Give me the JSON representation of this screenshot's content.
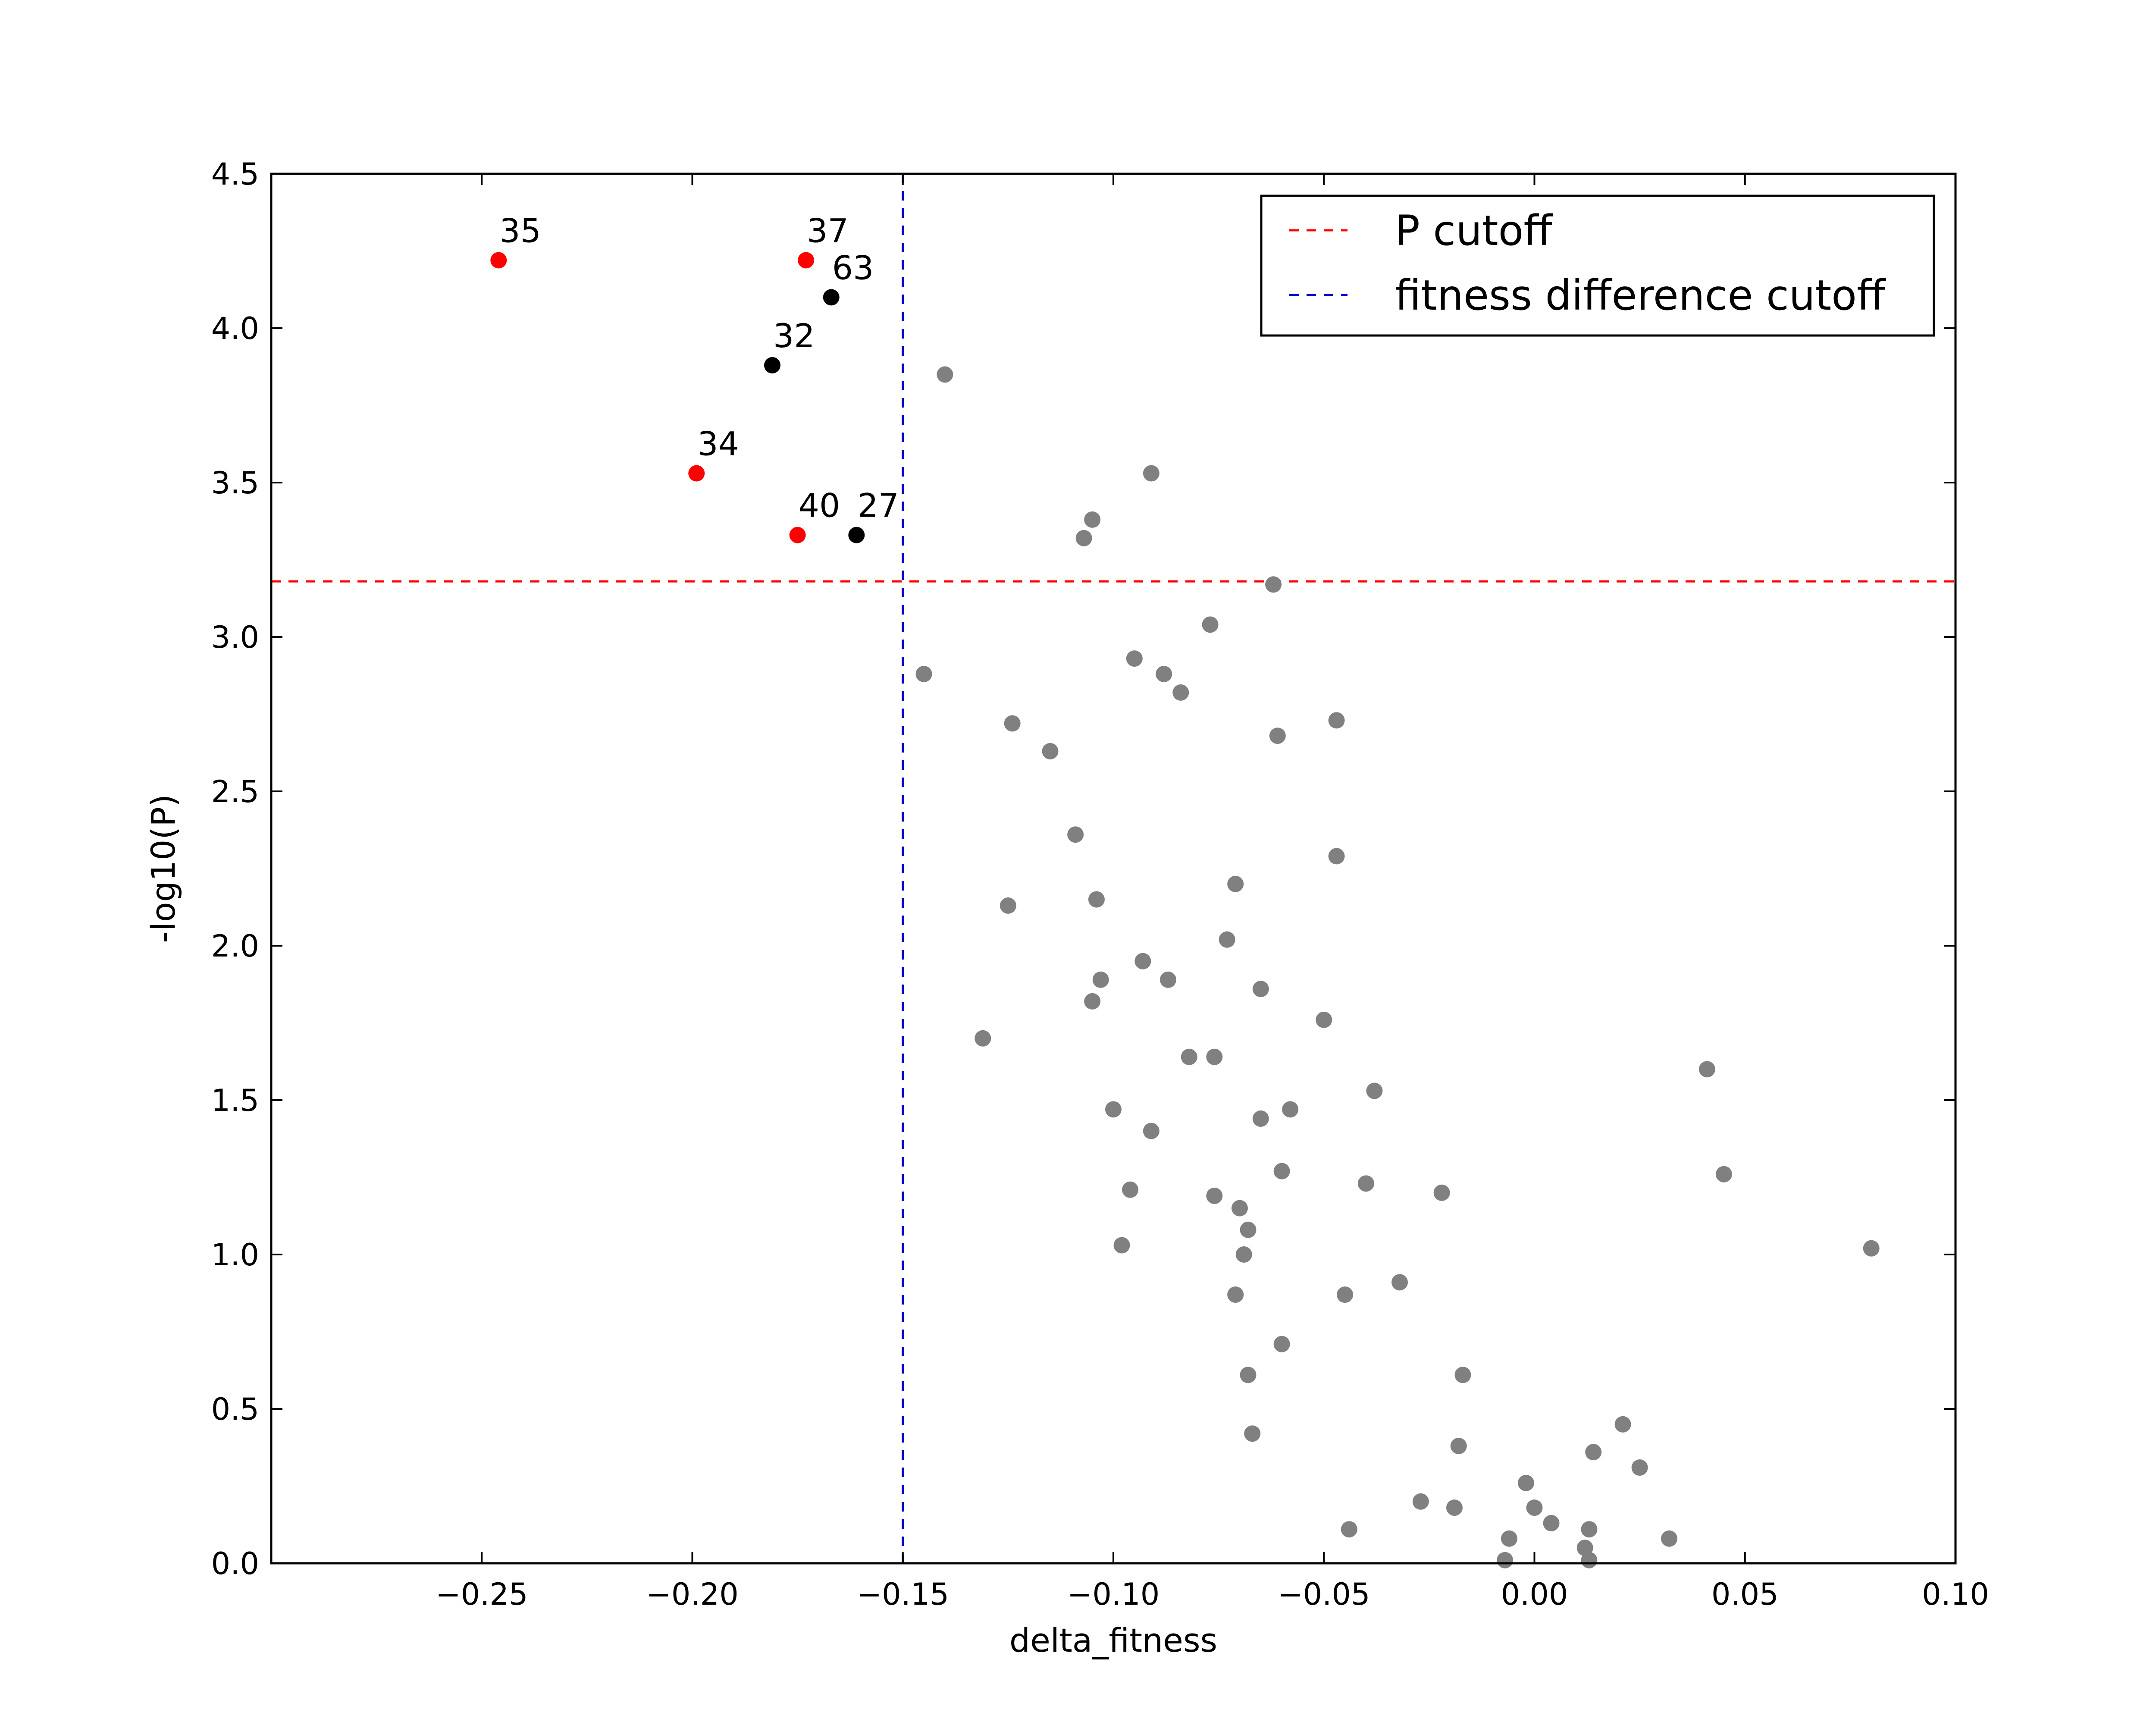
{
  "chart_data": {
    "type": "scatter",
    "title": "",
    "xlabel": "delta_fitness",
    "ylabel": "-log10(P)",
    "xlim": [
      -0.3,
      0.1
    ],
    "ylim": [
      0.0,
      4.5
    ],
    "x_ticks": [
      -0.25,
      -0.2,
      -0.15,
      -0.1,
      -0.05,
      0.0,
      0.05,
      0.1
    ],
    "x_tick_labels": [
      "−0.25",
      "−0.20",
      "−0.15",
      "−0.10",
      "−0.05",
      "0.00",
      "0.05",
      "0.10"
    ],
    "y_ticks": [
      0.0,
      0.5,
      1.0,
      1.5,
      2.0,
      2.5,
      3.0,
      3.5,
      4.0,
      4.5
    ],
    "y_tick_labels": [
      "0.0",
      "0.5",
      "1.0",
      "1.5",
      "2.0",
      "2.5",
      "3.0",
      "3.5",
      "4.0",
      "4.5"
    ],
    "grid": false,
    "legend_position": "top-right",
    "colors": {
      "significant": "#ff0000",
      "labeled": "#000000",
      "other": "#808080",
      "p_cutoff": "#ff0000",
      "fitness_cutoff": "#0000cc"
    },
    "reference_lines": [
      {
        "name": "P cutoff",
        "orientation": "horizontal",
        "value": 3.18,
        "color": "#ff0000",
        "style": "dashed"
      },
      {
        "name": "fitness difference cutoff",
        "orientation": "vertical",
        "value": -0.15,
        "color": "#0000cc",
        "style": "dashed"
      }
    ],
    "labeled_points": [
      {
        "label": "35",
        "x": -0.246,
        "y": 4.22,
        "color": "#ff0000"
      },
      {
        "label": "37",
        "x": -0.173,
        "y": 4.22,
        "color": "#ff0000"
      },
      {
        "label": "63",
        "x": -0.167,
        "y": 4.1,
        "color": "#000000"
      },
      {
        "label": "32",
        "x": -0.181,
        "y": 3.88,
        "color": "#000000"
      },
      {
        "label": "34",
        "x": -0.199,
        "y": 3.53,
        "color": "#ff0000"
      },
      {
        "label": "40",
        "x": -0.175,
        "y": 3.33,
        "color": "#ff0000"
      },
      {
        "label": "27",
        "x": -0.161,
        "y": 3.33,
        "color": "#000000"
      }
    ],
    "other_points": [
      [
        -0.14,
        3.85
      ],
      [
        -0.091,
        3.53
      ],
      [
        -0.105,
        3.38
      ],
      [
        -0.107,
        3.32
      ],
      [
        -0.062,
        3.17
      ],
      [
        -0.077,
        3.04
      ],
      [
        -0.145,
        2.88
      ],
      [
        -0.095,
        2.93
      ],
      [
        -0.088,
        2.88
      ],
      [
        -0.084,
        2.82
      ],
      [
        -0.124,
        2.72
      ],
      [
        -0.047,
        2.73
      ],
      [
        -0.061,
        2.68
      ],
      [
        -0.115,
        2.63
      ],
      [
        -0.109,
        2.36
      ],
      [
        -0.047,
        2.29
      ],
      [
        -0.071,
        2.2
      ],
      [
        -0.104,
        2.15
      ],
      [
        -0.125,
        2.13
      ],
      [
        -0.073,
        2.02
      ],
      [
        -0.093,
        1.95
      ],
      [
        -0.103,
        1.89
      ],
      [
        -0.087,
        1.89
      ],
      [
        -0.065,
        1.86
      ],
      [
        -0.105,
        1.82
      ],
      [
        -0.05,
        1.76
      ],
      [
        -0.131,
        1.7
      ],
      [
        -0.082,
        1.64
      ],
      [
        -0.076,
        1.64
      ],
      [
        0.041,
        1.6
      ],
      [
        -0.038,
        1.53
      ],
      [
        -0.1,
        1.47
      ],
      [
        -0.058,
        1.47
      ],
      [
        -0.065,
        1.44
      ],
      [
        -0.091,
        1.4
      ],
      [
        -0.06,
        1.27
      ],
      [
        0.045,
        1.26
      ],
      [
        -0.04,
        1.23
      ],
      [
        -0.096,
        1.21
      ],
      [
        -0.022,
        1.2
      ],
      [
        -0.076,
        1.19
      ],
      [
        -0.07,
        1.15
      ],
      [
        -0.068,
        1.08
      ],
      [
        -0.098,
        1.03
      ],
      [
        0.08,
        1.02
      ],
      [
        -0.069,
        1.0
      ],
      [
        -0.032,
        0.91
      ],
      [
        -0.071,
        0.87
      ],
      [
        -0.045,
        0.87
      ],
      [
        -0.06,
        0.71
      ],
      [
        -0.068,
        0.61
      ],
      [
        -0.017,
        0.61
      ],
      [
        0.021,
        0.45
      ],
      [
        -0.067,
        0.42
      ],
      [
        -0.018,
        0.38
      ],
      [
        0.014,
        0.36
      ],
      [
        0.025,
        0.31
      ],
      [
        -0.002,
        0.26
      ],
      [
        -0.027,
        0.2
      ],
      [
        0.0,
        0.18
      ],
      [
        -0.019,
        0.18
      ],
      [
        0.004,
        0.13
      ],
      [
        -0.044,
        0.11
      ],
      [
        0.013,
        0.11
      ],
      [
        0.032,
        0.08
      ],
      [
        -0.006,
        0.08
      ],
      [
        0.012,
        0.05
      ],
      [
        -0.007,
        0.01
      ],
      [
        0.013,
        0.01
      ]
    ]
  }
}
